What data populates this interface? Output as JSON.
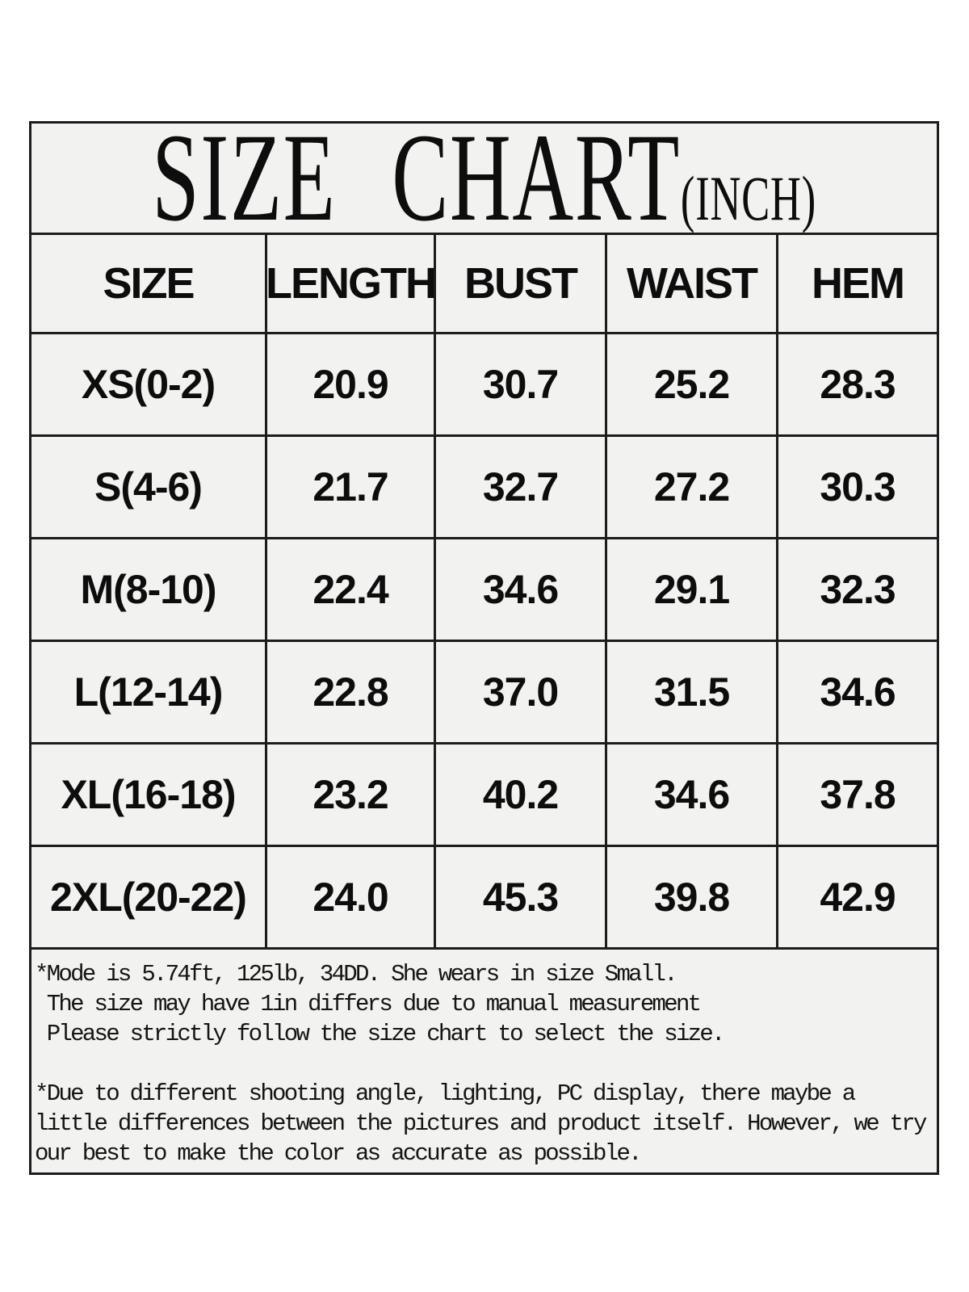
{
  "title": {
    "main": "SIZE CHART",
    "unit": "(INCH)"
  },
  "table": {
    "headers": [
      "SIZE",
      "LENGTH",
      "BUST",
      "WAIST",
      "HEM"
    ],
    "rows": [
      {
        "size": "XS(0-2)",
        "values": [
          "20.9",
          "30.7",
          "25.2",
          "28.3"
        ]
      },
      {
        "size": "S(4-6)",
        "values": [
          "21.7",
          "32.7",
          "27.2",
          "30.3"
        ]
      },
      {
        "size": "M(8-10)",
        "values": [
          "22.4",
          "34.6",
          "29.1",
          "32.3"
        ]
      },
      {
        "size": "L(12-14)",
        "values": [
          "22.8",
          "37.0",
          "31.5",
          "34.6"
        ]
      },
      {
        "size": "XL(16-18)",
        "values": [
          "23.2",
          "40.2",
          "34.6",
          "37.8"
        ]
      },
      {
        "size": "2XL(20-22)",
        "values": [
          "24.0",
          "45.3",
          "39.8",
          "42.9"
        ]
      }
    ]
  },
  "notes": {
    "para1": [
      "*Mode is 5.74ft, 125lb, 34DD. She wears in size Small.",
      " The size may have 1in differs due to manual measurement",
      " Please strictly follow the size chart to select the size."
    ],
    "para2": [
      "*Due to different shooting angle, lighting, PC display, there maybe a",
      "little differences between the pictures and product itself. However, we try",
      "our best to make the color as accurate as possible."
    ]
  },
  "colors": {
    "board_background": "#f2f2f0",
    "border": "#1c1c1c",
    "text": "#0d0d0d",
    "page_background": "#ffffff"
  },
  "chart_data": {
    "type": "table",
    "title": "SIZE CHART (INCH)",
    "columns": [
      "SIZE",
      "LENGTH",
      "BUST",
      "WAIST",
      "HEM"
    ],
    "rows": [
      [
        "XS(0-2)",
        20.9,
        30.7,
        25.2,
        28.3
      ],
      [
        "S(4-6)",
        21.7,
        32.7,
        27.2,
        30.3
      ],
      [
        "M(8-10)",
        22.4,
        34.6,
        29.1,
        32.3
      ],
      [
        "L(12-14)",
        22.8,
        37.0,
        31.5,
        34.6
      ],
      [
        "XL(16-18)",
        23.2,
        40.2,
        34.6,
        37.8
      ],
      [
        "2XL(20-22)",
        24.0,
        45.3,
        39.8,
        42.9
      ]
    ],
    "unit": "inch"
  }
}
